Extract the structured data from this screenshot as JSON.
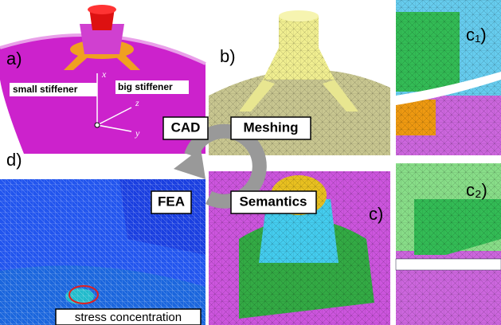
{
  "panels": {
    "a": {
      "label": "a)",
      "small_stiffener": "small stiffener",
      "big_stiffener": "big stiffener",
      "axis_x": "x",
      "axis_y": "y",
      "axis_z": "z"
    },
    "b": {
      "label": "b)"
    },
    "c1": {
      "label": "c₁)"
    },
    "c2": {
      "label": "c₂)"
    },
    "c": {
      "label": "c)"
    },
    "d": {
      "label": "d)",
      "annotation": "stress concentration"
    }
  },
  "cycle": {
    "steps": [
      "CAD",
      "Meshing",
      "Semantics",
      "FEA"
    ]
  }
}
